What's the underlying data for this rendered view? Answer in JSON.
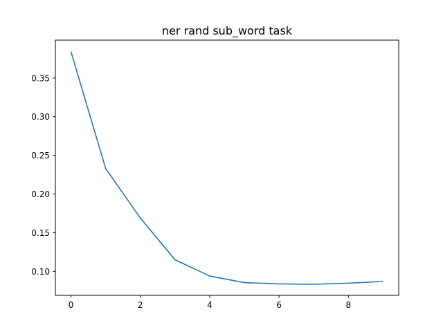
{
  "chart_data": {
    "type": "line",
    "title": "ner rand sub_word task",
    "xlabel": "",
    "ylabel": "",
    "x": [
      0,
      1,
      2,
      3,
      4,
      5,
      6,
      7,
      8,
      9
    ],
    "series": [
      {
        "values": [
          0.384,
          0.233,
          0.169,
          0.115,
          0.094,
          0.0855,
          0.0838,
          0.0833,
          0.0847,
          0.087
        ],
        "color": "#1f77b4"
      }
    ],
    "xlim": [
      -0.45,
      9.45
    ],
    "ylim": [
      0.069,
      0.399
    ],
    "xticks": [
      0,
      2,
      4,
      6,
      8
    ],
    "xtick_labels": [
      "0",
      "2",
      "4",
      "6",
      "8"
    ],
    "yticks": [
      0.1,
      0.15,
      0.2,
      0.25,
      0.3,
      0.35
    ],
    "ytick_labels": [
      "0.10",
      "0.15",
      "0.20",
      "0.25",
      "0.30",
      "0.35"
    ],
    "grid": false,
    "legend": "none"
  }
}
